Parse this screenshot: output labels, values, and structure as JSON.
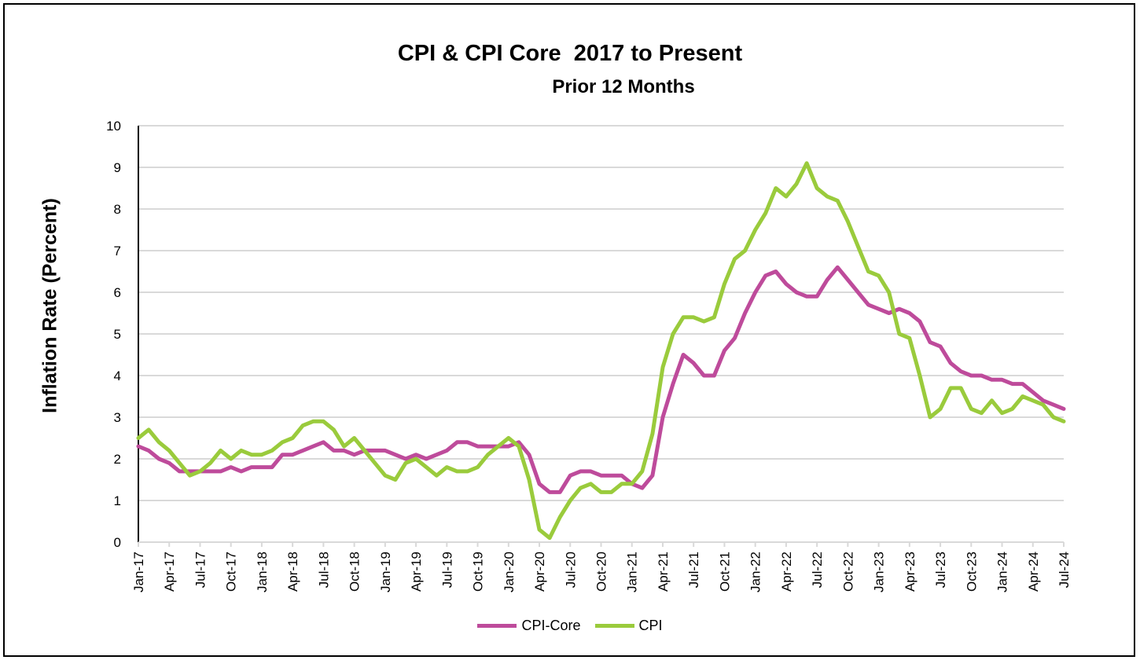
{
  "chart_data": {
    "type": "line",
    "title": "CPI & CPI Core  2017 to Present",
    "subtitle": "Prior 12 Months",
    "xlabel": "",
    "ylabel": "Inflation Rate (Percent)",
    "ylim": [
      0,
      10
    ],
    "yticks": [
      "0",
      "1",
      "2",
      "3",
      "4",
      "5",
      "6",
      "7",
      "8",
      "9",
      "10"
    ],
    "grid": true,
    "legend": "bottom",
    "x_start": "Jan-17",
    "x_end": "Jul-24",
    "xtick_labels": [
      "Jan-17",
      "Apr-17",
      "Jul-17",
      "Oct-17",
      "Jan-18",
      "Apr-18",
      "Jul-18",
      "Oct-18",
      "Jan-19",
      "Apr-19",
      "Jul-19",
      "Oct-19",
      "Jan-20",
      "Apr-20",
      "Jul-20",
      "Oct-20",
      "Jan-21",
      "Apr-21",
      "Jul-21",
      "Oct-21",
      "Jan-22",
      "Apr-22",
      "Jul-22",
      "Oct-22",
      "Jan-23",
      "Apr-23",
      "Jul-23",
      "Oct-23",
      "Jan-24",
      "Apr-24",
      "Jul-24"
    ],
    "series": [
      {
        "name": "CPI-Core",
        "color": "#be4b9b",
        "values": [
          2.3,
          2.2,
          2.0,
          1.9,
          1.7,
          1.7,
          1.7,
          1.7,
          1.7,
          1.8,
          1.7,
          1.8,
          1.8,
          1.8,
          2.1,
          2.1,
          2.2,
          2.3,
          2.4,
          2.2,
          2.2,
          2.1,
          2.2,
          2.2,
          2.2,
          2.1,
          2.0,
          2.1,
          2.0,
          2.1,
          2.2,
          2.4,
          2.4,
          2.3,
          2.3,
          2.3,
          2.3,
          2.4,
          2.1,
          1.4,
          1.2,
          1.2,
          1.6,
          1.7,
          1.7,
          1.6,
          1.6,
          1.6,
          1.4,
          1.3,
          1.6,
          3.0,
          3.8,
          4.5,
          4.3,
          4.0,
          4.0,
          4.6,
          4.9,
          5.5,
          6.0,
          6.4,
          6.5,
          6.2,
          6.0,
          5.9,
          5.9,
          6.3,
          6.6,
          6.3,
          6.0,
          5.7,
          5.6,
          5.5,
          5.6,
          5.5,
          5.3,
          4.8,
          4.7,
          4.3,
          4.1,
          4.0,
          4.0,
          3.9,
          3.9,
          3.8,
          3.8,
          3.6,
          3.4,
          3.3,
          3.2
        ]
      },
      {
        "name": "CPI",
        "color": "#9acb3c",
        "values": [
          2.5,
          2.7,
          2.4,
          2.2,
          1.9,
          1.6,
          1.7,
          1.9,
          2.2,
          2.0,
          2.2,
          2.1,
          2.1,
          2.2,
          2.4,
          2.5,
          2.8,
          2.9,
          2.9,
          2.7,
          2.3,
          2.5,
          2.2,
          1.9,
          1.6,
          1.5,
          1.9,
          2.0,
          1.8,
          1.6,
          1.8,
          1.7,
          1.7,
          1.8,
          2.1,
          2.3,
          2.5,
          2.3,
          1.5,
          0.3,
          0.1,
          0.6,
          1.0,
          1.3,
          1.4,
          1.2,
          1.2,
          1.4,
          1.4,
          1.7,
          2.6,
          4.2,
          5.0,
          5.4,
          5.4,
          5.3,
          5.4,
          6.2,
          6.8,
          7.0,
          7.5,
          7.9,
          8.5,
          8.3,
          8.6,
          9.1,
          8.5,
          8.3,
          8.2,
          7.7,
          7.1,
          6.5,
          6.4,
          6.0,
          5.0,
          4.9,
          4.0,
          3.0,
          3.2,
          3.7,
          3.7,
          3.2,
          3.1,
          3.4,
          3.1,
          3.2,
          3.5,
          3.4,
          3.3,
          3.0,
          2.9
        ]
      }
    ]
  }
}
